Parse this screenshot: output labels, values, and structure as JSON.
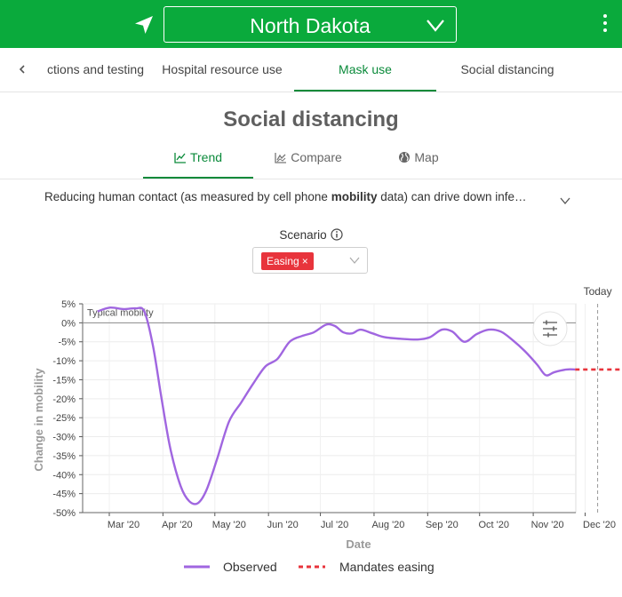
{
  "header": {
    "state": "North Dakota",
    "icons": {
      "nav": "location-arrow-icon",
      "dropdown": "chevron-down-icon",
      "menu": "kebab-menu-icon"
    },
    "color": "#0aaa3c"
  },
  "tabs": [
    {
      "label": "Infections and testing",
      "visible_label": "ctions and testing"
    },
    {
      "label": "Hospital resource use"
    },
    {
      "label": "Mask use",
      "active": true
    },
    {
      "label": "Social distancing"
    }
  ],
  "page": {
    "title": "Social distancing",
    "views": [
      {
        "label": "Trend",
        "icon": "line-chart-icon",
        "active": true
      },
      {
        "label": "Compare",
        "icon": "area-chart-icon"
      },
      {
        "label": "Map",
        "icon": "globe-icon"
      }
    ],
    "description_pre": "Reducing human contact (as measured by cell phone ",
    "description_bold": "mobility",
    "description_post": " data) can drive down infe…",
    "scenario_label": "Scenario",
    "scenario_chip": "Easing"
  },
  "chart_data": {
    "type": "line",
    "xlabel": "Date",
    "ylabel": "Change in mobility",
    "ylim": [
      -50,
      5
    ],
    "yticks": [
      "5%",
      "0%",
      "-5%",
      "-10%",
      "-15%",
      "-20%",
      "-25%",
      "-30%",
      "-35%",
      "-40%",
      "-45%",
      "-50%"
    ],
    "xticks": [
      "Mar '20",
      "Apr '20",
      "May '20",
      "Jun '20",
      "Jul '20",
      "Aug '20",
      "Sep '20",
      "Oct '20",
      "Nov '20",
      "Dec '20"
    ],
    "baseline_label": "Typical mobility",
    "today_label": "Today",
    "today_date": "2020-11-30",
    "grid": true,
    "legend_position": "bottom",
    "series": [
      {
        "name": "Observed",
        "color": "#a066e0",
        "style": "solid",
        "points": [
          [
            "2020-02-15",
            3.0
          ],
          [
            "2020-02-22",
            4.0
          ],
          [
            "2020-03-01",
            3.6
          ],
          [
            "2020-03-08",
            3.8
          ],
          [
            "2020-03-13",
            3.0
          ],
          [
            "2020-03-18",
            -6.0
          ],
          [
            "2020-03-23",
            -20.0
          ],
          [
            "2020-03-28",
            -33.0
          ],
          [
            "2020-04-03",
            -43.0
          ],
          [
            "2020-04-08",
            -47.0
          ],
          [
            "2020-04-13",
            -47.5
          ],
          [
            "2020-04-18",
            -44.0
          ],
          [
            "2020-04-24",
            -36.0
          ],
          [
            "2020-05-01",
            -26.0
          ],
          [
            "2020-05-08",
            -21.0
          ],
          [
            "2020-05-15",
            -16.0
          ],
          [
            "2020-05-22",
            -11.5
          ],
          [
            "2020-05-29",
            -9.5
          ],
          [
            "2020-06-05",
            -5.0
          ],
          [
            "2020-06-12",
            -3.5
          ],
          [
            "2020-06-19",
            -2.5
          ],
          [
            "2020-06-26",
            -0.5
          ],
          [
            "2020-07-01",
            -0.8
          ],
          [
            "2020-07-06",
            -2.5
          ],
          [
            "2020-07-11",
            -2.8
          ],
          [
            "2020-07-16",
            -1.8
          ],
          [
            "2020-07-23",
            -2.8
          ],
          [
            "2020-07-30",
            -3.8
          ],
          [
            "2020-08-08",
            -4.2
          ],
          [
            "2020-08-18",
            -4.4
          ],
          [
            "2020-08-25",
            -3.8
          ],
          [
            "2020-09-01",
            -1.8
          ],
          [
            "2020-09-07",
            -2.3
          ],
          [
            "2020-09-14",
            -5.0
          ],
          [
            "2020-09-21",
            -3.0
          ],
          [
            "2020-09-28",
            -1.8
          ],
          [
            "2020-10-05",
            -2.3
          ],
          [
            "2020-10-12",
            -4.6
          ],
          [
            "2020-10-19",
            -7.5
          ],
          [
            "2020-10-26",
            -11.0
          ],
          [
            "2020-10-31",
            -13.8
          ],
          [
            "2020-11-05",
            -13.0
          ],
          [
            "2020-11-12",
            -12.3
          ],
          [
            "2020-11-17",
            -12.3
          ]
        ]
      },
      {
        "name": "Mandates easing",
        "color": "#e8343c",
        "style": "dashed",
        "points": [
          [
            "2020-11-17",
            -12.3
          ],
          [
            "2020-12-01",
            -12.3
          ],
          [
            "2020-12-15",
            -12.3
          ]
        ]
      }
    ]
  }
}
